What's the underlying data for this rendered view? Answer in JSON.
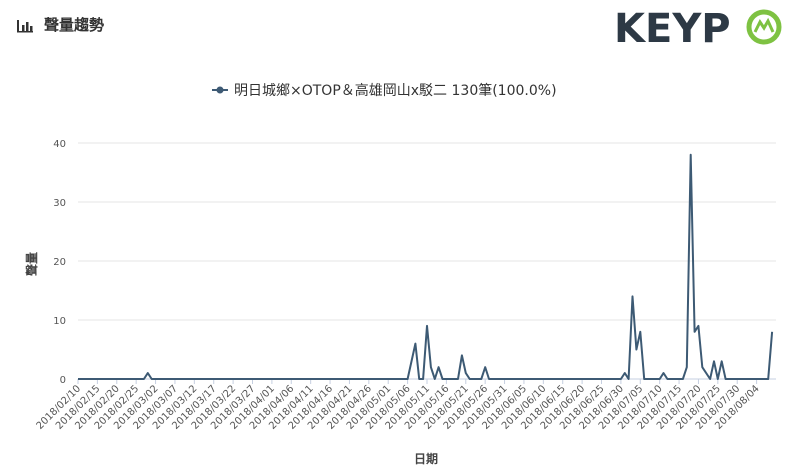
{
  "header": {
    "title": "聲量趨勢",
    "icon": "bar-chart-icon"
  },
  "logo": {
    "text_dark": "KEYP",
    "text_accent": "O",
    "color_dark": "#2d3945",
    "color_accent": "#7ec242"
  },
  "colors": {
    "series": "#3d5a74",
    "axis": "#c6cfe0",
    "text": "#333333"
  },
  "chart_data": {
    "type": "line",
    "title": "",
    "legend_position": "top-center",
    "xlabel": "日期",
    "ylabel": "聲量",
    "ylim": [
      0,
      40
    ],
    "yticks": [
      0,
      10,
      20,
      30,
      40
    ],
    "x_start": "2018-02-10",
    "tick_labels": [
      "2018/02/10",
      "2018/02/15",
      "2018/02/20",
      "2018/02/25",
      "2018/03/02",
      "2018/03/07",
      "2018/03/12",
      "2018/03/17",
      "2018/03/22",
      "2018/03/27",
      "2018/04/01",
      "2018/04/06",
      "2018/04/11",
      "2018/04/16",
      "2018/04/21",
      "2018/04/26",
      "2018/05/01",
      "2018/05/06",
      "2018/05/11",
      "2018/05/16",
      "2018/05/21",
      "2018/05/26",
      "2018/05/31",
      "2018/06/05",
      "2018/06/10",
      "2018/06/15",
      "2018/06/20",
      "2018/06/25",
      "2018/06/30",
      "2018/07/05",
      "2018/07/10",
      "2018/07/15",
      "2018/07/20",
      "2018/07/25",
      "2018/07/30",
      "2018/08/04"
    ],
    "series": [
      {
        "name": "明日城鄉×OTOP＆高雄岡山x駁二",
        "legend_label": "明日城鄉×OTOP＆高雄岡山x駁二 130筆(100.0%)",
        "points": [
          [
            "2018-02-10",
            0
          ],
          [
            "2018-02-27",
            0
          ],
          [
            "2018-02-28",
            1
          ],
          [
            "2018-03-01",
            0
          ],
          [
            "2018-05-06",
            0
          ],
          [
            "2018-05-08",
            6
          ],
          [
            "2018-05-09",
            0
          ],
          [
            "2018-05-10",
            0
          ],
          [
            "2018-05-11",
            9
          ],
          [
            "2018-05-12",
            2
          ],
          [
            "2018-05-13",
            0
          ],
          [
            "2018-05-14",
            2
          ],
          [
            "2018-05-15",
            0
          ],
          [
            "2018-05-19",
            0
          ],
          [
            "2018-05-20",
            4
          ],
          [
            "2018-05-21",
            1
          ],
          [
            "2018-05-22",
            0
          ],
          [
            "2018-05-25",
            0
          ],
          [
            "2018-05-26",
            2
          ],
          [
            "2018-05-27",
            0
          ],
          [
            "2018-06-30",
            0
          ],
          [
            "2018-07-01",
            1
          ],
          [
            "2018-07-02",
            0
          ],
          [
            "2018-07-03",
            14
          ],
          [
            "2018-07-04",
            5
          ],
          [
            "2018-07-05",
            8
          ],
          [
            "2018-07-06",
            0
          ],
          [
            "2018-07-10",
            0
          ],
          [
            "2018-07-11",
            1
          ],
          [
            "2018-07-12",
            0
          ],
          [
            "2018-07-16",
            0
          ],
          [
            "2018-07-17",
            2
          ],
          [
            "2018-07-18",
            38
          ],
          [
            "2018-07-19",
            8
          ],
          [
            "2018-07-20",
            9
          ],
          [
            "2018-07-21",
            2
          ],
          [
            "2018-07-23",
            0
          ],
          [
            "2018-07-24",
            3
          ],
          [
            "2018-07-25",
            0
          ],
          [
            "2018-07-26",
            3
          ],
          [
            "2018-07-27",
            0
          ],
          [
            "2018-08-07",
            0
          ],
          [
            "2018-08-08",
            8
          ]
        ]
      }
    ]
  }
}
